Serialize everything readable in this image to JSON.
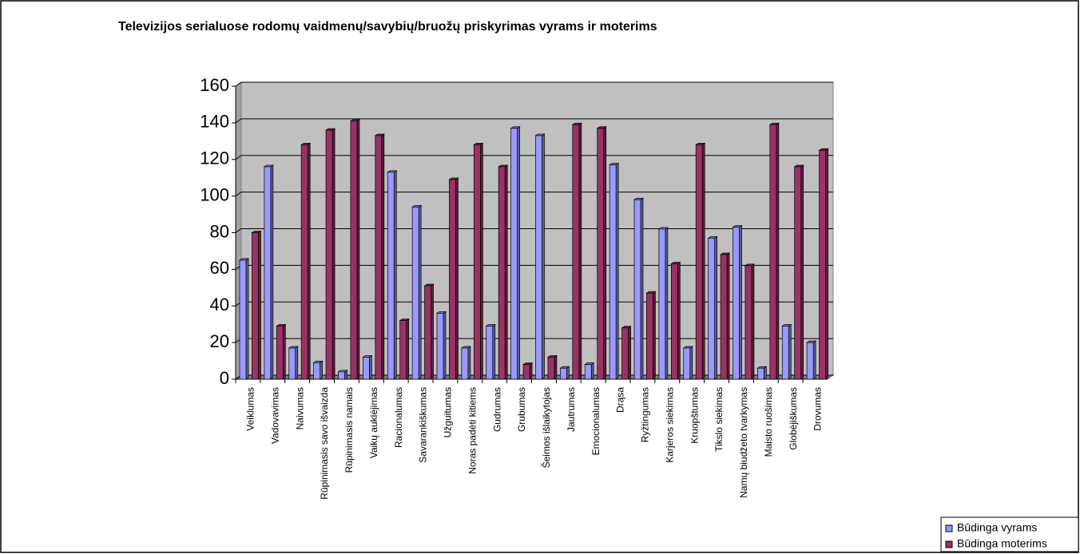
{
  "chart_data": {
    "type": "bar",
    "title": "Televizijos serialuose rodomų vaidmenų/savybių/bruožų priskyrimas vyrams ir moterims",
    "categories": [
      "Veiklumas",
      "Vadovavimas",
      "Naivumas",
      "Rūpinimasis savo išvaizda",
      "Rūpinimasis namais",
      "Vaikų auklėjimas",
      "Racionalumas",
      "Savarankiškumas",
      "Užguitumas",
      "Noras padėti kitiems",
      "Gudrumas",
      "Grubumas",
      "Šeimos išlaikytojas",
      "Jautrumas",
      "Emocionalumas",
      "Drąsa",
      "Ryžtingumas",
      "Karjeros siekimas",
      "Kruopštumas",
      "Tikslo siekimas",
      "Namų biudžeto tvarkymas",
      "Maisto ruošimas",
      "Globėjiškumas",
      "Drovumas"
    ],
    "series": [
      {
        "name": "Būdinga vyrams",
        "color": "#9999ff",
        "values": [
          65,
          116,
          17,
          9,
          4,
          12,
          113,
          94,
          36,
          17,
          29,
          137,
          133,
          6,
          8,
          117,
          98,
          82,
          17,
          77,
          83,
          6,
          29,
          20
        ]
      },
      {
        "name": "Būdinga moterims",
        "color": "#993366",
        "values": [
          80,
          29,
          128,
          136,
          141,
          133,
          32,
          51,
          109,
          128,
          116,
          8,
          12,
          139,
          137,
          28,
          47,
          63,
          128,
          68,
          62,
          139,
          116,
          125
        ]
      }
    ],
    "ylim": [
      0,
      160
    ],
    "yticks": [
      0,
      20,
      40,
      60,
      80,
      100,
      120,
      140,
      160
    ],
    "grid": true,
    "legend": "bottom-right"
  }
}
